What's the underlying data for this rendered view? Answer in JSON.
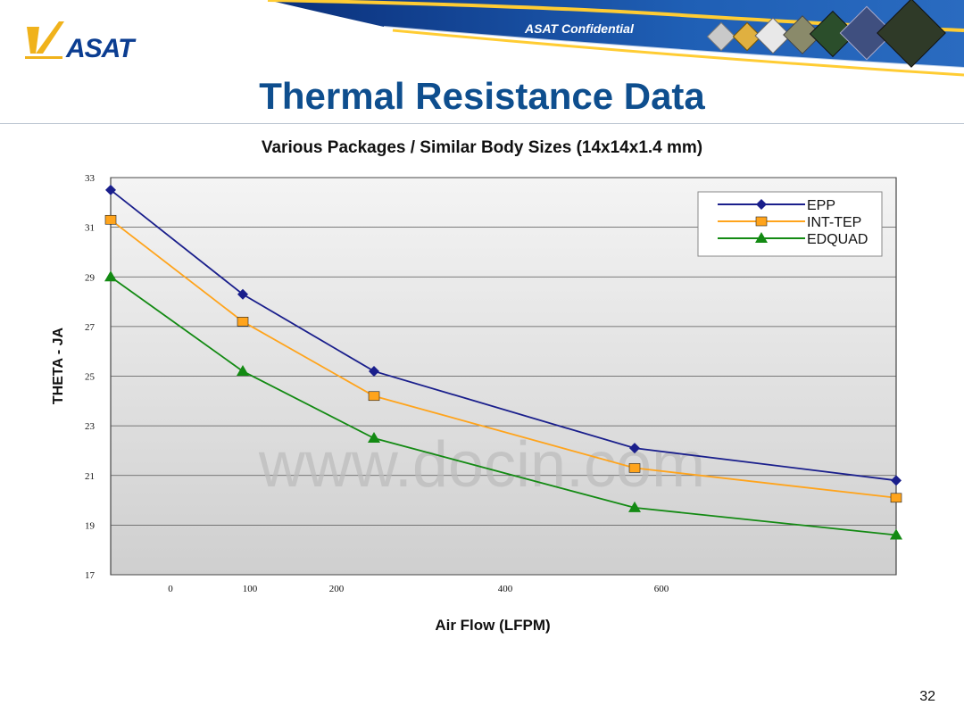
{
  "slide": {
    "logo_text": "ASAT",
    "confidential": "ASAT Confidential",
    "title": "Thermal Resistance Data",
    "page_number": "32",
    "watermark": "www.docin.com"
  },
  "colors": {
    "title_blue": "#0e4e8e",
    "epp": "#1a1f8c",
    "int_tep": "#ffa41c",
    "edquad": "#138a13",
    "plot_bg": "#d8d8d8"
  },
  "chart_data": {
    "type": "line",
    "title": "Various Packages / Similar Body Sizes (14x14x1.4 mm)",
    "xlabel": "Air Flow (LFPM)",
    "ylabel": "THETA - JA",
    "ylim": [
      17,
      33
    ],
    "y_ticks": [
      17,
      19,
      21,
      23,
      25,
      27,
      29,
      31,
      33
    ],
    "x_tick_labels": [
      "0",
      "100",
      "200",
      "400",
      "600"
    ],
    "grid": true,
    "legend_position": "top-right",
    "series": [
      {
        "name": "EPP",
        "marker": "diamond",
        "color": "#1a1f8c",
        "values": [
          32.5,
          28.3,
          25.2,
          22.1,
          20.8
        ]
      },
      {
        "name": "INT-TEP",
        "marker": "square",
        "color": "#ffa41c",
        "values": [
          31.3,
          27.2,
          24.2,
          21.3,
          20.1
        ]
      },
      {
        "name": "EDQUAD",
        "marker": "triangle",
        "color": "#138a13",
        "values": [
          29.0,
          25.2,
          22.5,
          19.7,
          18.6
        ]
      }
    ]
  }
}
